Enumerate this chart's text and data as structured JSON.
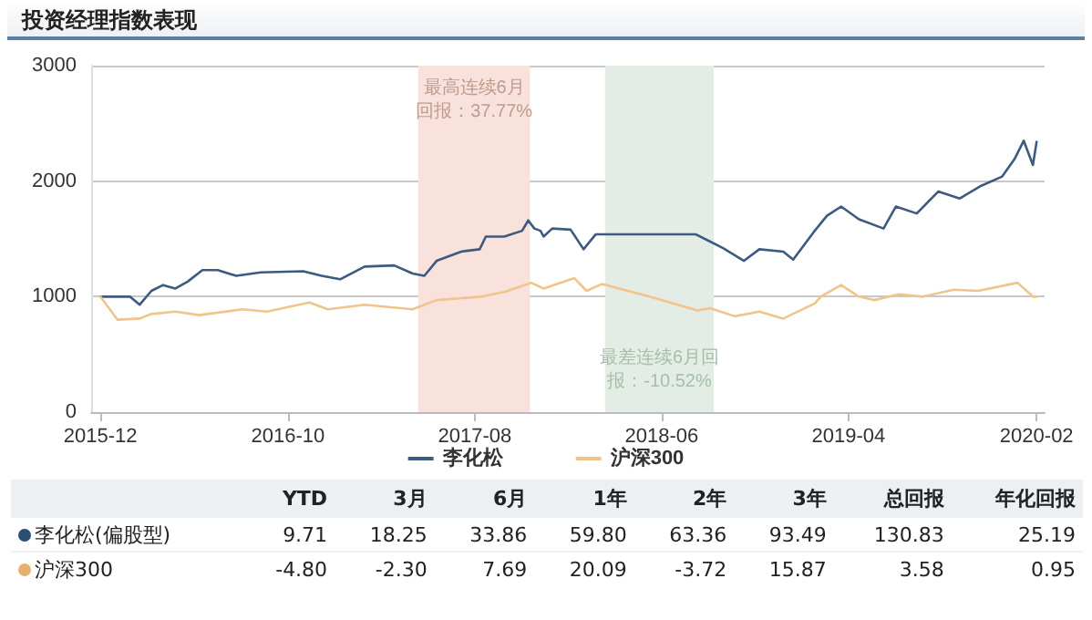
{
  "chart_data": [
    {
      "type": "line",
      "title": "投资经理指数表现",
      "xlim": [
        "2015-11-16",
        "2020-02-14"
      ],
      "xticks": [
        "2015-12",
        "2016-10",
        "2017-08",
        "2018-06",
        "2019-04",
        "2020-02"
      ],
      "ylim": [
        0,
        3000
      ],
      "yticks": [
        0,
        1000,
        2000,
        3000
      ],
      "grid": "y",
      "legend": "bottom",
      "marker": "none",
      "line_style": "solid",
      "series": [
        {
          "name": "李化松",
          "color": "#3d5a80",
          "x": [
            "2015-12-01",
            "2016-01-18",
            "2016-02-03",
            "2016-02-22",
            "2016-03-12",
            "2016-04-01",
            "2016-04-21",
            "2016-05-15",
            "2016-06-09",
            "2016-07-09",
            "2016-08-18",
            "2016-10-26",
            "2016-11-25",
            "2016-12-25",
            "2017-02-03",
            "2017-03-23",
            "2017-04-22",
            "2017-05-11",
            "2017-05-31",
            "2017-07-10",
            "2017-08-09",
            "2017-08-19",
            "2017-09-18",
            "2017-10-17",
            "2017-10-27",
            "2017-11-06",
            "2017-11-16",
            "2017-11-21",
            "2017-12-05",
            "2018-01-04",
            "2018-01-25",
            "2018-02-14",
            "2018-03-01",
            "2018-07-26",
            "2018-08-14",
            "2018-09-09",
            "2018-10-13",
            "2018-11-07",
            "2018-12-16",
            "2019-01-01",
            "2019-02-05",
            "2019-02-25",
            "2019-03-20",
            "2019-04-18",
            "2019-05-28",
            "2019-06-17",
            "2019-07-21",
            "2019-08-25",
            "2019-09-29",
            "2019-11-03",
            "2019-12-07",
            "2019-12-27",
            "2020-01-11",
            "2020-01-26",
            "2020-02-01"
          ],
          "values": [
            1000,
            1000,
            930,
            1050,
            1100,
            1070,
            1130,
            1230,
            1230,
            1180,
            1210,
            1220,
            1180,
            1150,
            1260,
            1270,
            1200,
            1180,
            1310,
            1390,
            1410,
            1520,
            1520,
            1570,
            1660,
            1590,
            1570,
            1520,
            1590,
            1580,
            1410,
            1540,
            1540,
            1540,
            1490,
            1420,
            1310,
            1410,
            1390,
            1320,
            1570,
            1700,
            1780,
            1670,
            1590,
            1780,
            1720,
            1910,
            1850,
            1960,
            2040,
            2190,
            2350,
            2140,
            2340
          ]
        },
        {
          "name": "沪深300",
          "color": "#f0c48a",
          "x": [
            "2015-12-01",
            "2015-12-29",
            "2016-02-03",
            "2016-02-22",
            "2016-04-01",
            "2016-05-10",
            "2016-07-19",
            "2016-08-28",
            "2016-11-05",
            "2016-12-05",
            "2017-02-03",
            "2017-04-22",
            "2017-05-31",
            "2017-08-12",
            "2017-09-18",
            "2017-11-01",
            "2017-11-21",
            "2018-01-10",
            "2018-01-30",
            "2018-02-24",
            "2018-05-12",
            "2018-07-30",
            "2018-08-19",
            "2018-09-28",
            "2018-11-07",
            "2018-12-16",
            "2019-02-05",
            "2019-02-15",
            "2019-03-20",
            "2019-04-18",
            "2019-05-13",
            "2019-06-22",
            "2019-07-31",
            "2019-09-19",
            "2019-10-29",
            "2020-01-01",
            "2020-01-26",
            "2020-02-01"
          ],
          "values": [
            1000,
            800,
            810,
            850,
            870,
            840,
            890,
            870,
            950,
            890,
            930,
            890,
            970,
            1000,
            1040,
            1120,
            1070,
            1160,
            1050,
            1110,
            1000,
            880,
            900,
            830,
            870,
            810,
            940,
            1000,
            1100,
            1000,
            970,
            1020,
            1000,
            1060,
            1050,
            1120,
            1000,
            1000
          ]
        }
      ],
      "bands": [
        {
          "axis": "x",
          "from": "2017-05-01",
          "to": "2017-10-30",
          "label": "最高连续6月回报：37.77%",
          "color": "#f9e1dc"
        },
        {
          "axis": "x",
          "from": "2018-03-01",
          "to": "2018-08-25",
          "label": "最差连续6月回报：-10.52%",
          "color": "#e4ede5"
        }
      ]
    },
    {
      "type": "other",
      "categories": [
        "YTD",
        "3月",
        "6月",
        "1年",
        "2年",
        "3年",
        "总回报",
        "年化回报"
      ],
      "series": [
        {
          "name": "李化松(偏股型)",
          "color": "#2d4d73",
          "values": [
            9.71,
            18.25,
            33.86,
            59.8,
            63.36,
            93.49,
            130.83,
            25.19
          ],
          "value_labels": [
            "9.71",
            "18.25",
            "33.86",
            "59.80",
            "63.36",
            "93.49",
            "130.83",
            "25.19"
          ]
        },
        {
          "name": "沪深300",
          "color": "#e8b070",
          "values": [
            -4.8,
            -2.3,
            7.69,
            20.09,
            -3.72,
            15.87,
            3.58,
            0.95
          ],
          "value_labels": [
            "-4.80",
            "-2.30",
            "7.69",
            "20.09",
            "-3.72",
            "15.87",
            "3.58",
            "0.95"
          ]
        }
      ]
    }
  ]
}
